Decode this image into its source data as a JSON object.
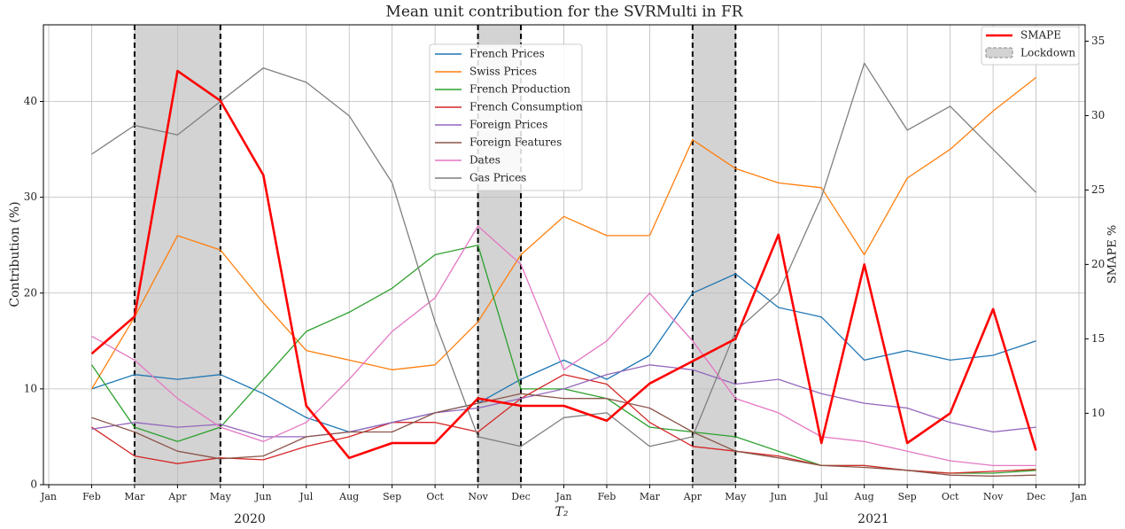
{
  "chart_data": {
    "type": "line",
    "title": "Mean unit contribution for the SVRMulti in FR",
    "xlabel": "T₂",
    "ylabel": "Contribution (%)",
    "y2label": "SMAPE %",
    "years": [
      "2020",
      "2021"
    ],
    "x": [
      "2020-02",
      "2020-03",
      "2020-04",
      "2020-05",
      "2020-06",
      "2020-07",
      "2020-08",
      "2020-09",
      "2020-10",
      "2020-11",
      "2020-12",
      "2021-01",
      "2021-02",
      "2021-03",
      "2021-04",
      "2021-05",
      "2021-06",
      "2021-07",
      "2021-08",
      "2021-09",
      "2021-10",
      "2021-11",
      "2021-12"
    ],
    "series": [
      {
        "name": "French Prices",
        "color": "#1f77b4",
        "values": [
          10,
          11.5,
          11,
          11.5,
          9.5,
          7,
          5.5,
          6.5,
          7.5,
          8.5,
          11,
          13,
          11,
          13.5,
          20,
          22,
          18.5,
          17.5,
          13,
          14,
          13,
          13.5,
          15
        ]
      },
      {
        "name": "Swiss Prices",
        "color": "#ff7f0e",
        "values": [
          10,
          17.5,
          26,
          24.5,
          19,
          14,
          13,
          12,
          12.5,
          17,
          24,
          28,
          26,
          26,
          36,
          33,
          31.5,
          31,
          24,
          32,
          35,
          39,
          42.5
        ]
      },
      {
        "name": "French Production",
        "color": "#2ca02c",
        "values": [
          12.5,
          6,
          4.5,
          6,
          11,
          16,
          18,
          20.5,
          24,
          25,
          10,
          10,
          9,
          6,
          5.5,
          5,
          3.5,
          2,
          2,
          1.5,
          1.2,
          1.2,
          1.5
        ]
      },
      {
        "name": "French Consumption",
        "color": "#d62728",
        "values": [
          6,
          3,
          2.2,
          2.8,
          2.6,
          4,
          5,
          6.5,
          6.5,
          5.5,
          9,
          11.5,
          10.5,
          6.5,
          4,
          3.5,
          3,
          2,
          2,
          1.5,
          1.2,
          1.4,
          1.6
        ]
      },
      {
        "name": "Foreign Prices",
        "color": "#9467bd",
        "values": [
          5.8,
          6.5,
          6,
          6.3,
          5,
          5,
          5.5,
          6.5,
          7.5,
          8,
          9,
          10,
          11.5,
          12.5,
          12,
          10.5,
          11,
          9.5,
          8.5,
          8,
          6.5,
          5.5,
          6
        ]
      },
      {
        "name": "Foreign Features",
        "color": "#8c564b",
        "values": [
          7,
          5.5,
          3.5,
          2.7,
          3,
          5,
          5.5,
          5.5,
          7.5,
          8.5,
          9.5,
          9,
          9,
          8,
          5.5,
          3.5,
          2.8,
          2,
          1.8,
          1.5,
          1,
          0.9,
          1
        ]
      },
      {
        "name": "Dates",
        "color": "#e377c2",
        "values": [
          15.5,
          13,
          9,
          6,
          4.5,
          6.5,
          11,
          16,
          19.5,
          27,
          23,
          12,
          15,
          20,
          15,
          9,
          7.5,
          5,
          4.5,
          3.5,
          2.5,
          2,
          2
        ]
      },
      {
        "name": "Gas Prices",
        "color": "#7f7f7f",
        "values": [
          34.5,
          37.5,
          36.5,
          40,
          43.5,
          42,
          38.5,
          31.5,
          17,
          5,
          4,
          7,
          7.5,
          4,
          5,
          16,
          20,
          30,
          44,
          37,
          39.5,
          35,
          30.5
        ]
      },
      {
        "name": "SMAPE",
        "color": "#ff0000",
        "axis": "y2",
        "values": [
          14,
          16.5,
          33,
          31,
          26,
          10.5,
          7,
          8,
          8,
          11,
          10.5,
          10.5,
          9.5,
          12,
          13.5,
          15,
          22,
          8,
          20,
          8,
          10,
          17,
          7.5
        ]
      }
    ],
    "shaded_regions": {
      "name": "Lockdown",
      "color": "#d3d3d3",
      "ranges": [
        [
          "2020-03",
          "2020-05"
        ],
        [
          "2020-11",
          "2020-12"
        ],
        [
          "2021-04",
          "2021-05"
        ]
      ]
    },
    "xlim": [
      "2020-01",
      "2022-01"
    ],
    "xticks": [
      {
        "value": "2020-01",
        "label": "Jan"
      },
      {
        "value": "2020-02",
        "label": "Feb"
      },
      {
        "value": "2020-03",
        "label": "Mar"
      },
      {
        "value": "2020-04",
        "label": "Apr"
      },
      {
        "value": "2020-05",
        "label": "May"
      },
      {
        "value": "2020-06",
        "label": "Jun"
      },
      {
        "value": "2020-07",
        "label": "Jul"
      },
      {
        "value": "2020-08",
        "label": "Aug"
      },
      {
        "value": "2020-09",
        "label": "Sep"
      },
      {
        "value": "2020-10",
        "label": "Oct"
      },
      {
        "value": "2020-11",
        "label": "Nov"
      },
      {
        "value": "2020-12",
        "label": "Dec"
      },
      {
        "value": "2021-01",
        "label": "Jan"
      },
      {
        "value": "2021-02",
        "label": "Feb"
      },
      {
        "value": "2021-03",
        "label": "Mar"
      },
      {
        "value": "2021-04",
        "label": "Apr"
      },
      {
        "value": "2021-05",
        "label": "May"
      },
      {
        "value": "2021-06",
        "label": "Jun"
      },
      {
        "value": "2021-07",
        "label": "Jul"
      },
      {
        "value": "2021-08",
        "label": "Aug"
      },
      {
        "value": "2021-09",
        "label": "Sep"
      },
      {
        "value": "2021-10",
        "label": "Oct"
      },
      {
        "value": "2021-11",
        "label": "Nov"
      },
      {
        "value": "2021-12",
        "label": "Dec"
      },
      {
        "value": "2022-01",
        "label": "Jan"
      }
    ],
    "ylim": [
      0,
      48
    ],
    "yticks": [
      0,
      10,
      20,
      30,
      40
    ],
    "y2lim": [
      5.2,
      36.1
    ],
    "y2ticks": [
      10,
      15,
      20,
      25,
      30,
      35
    ],
    "grid": true
  }
}
